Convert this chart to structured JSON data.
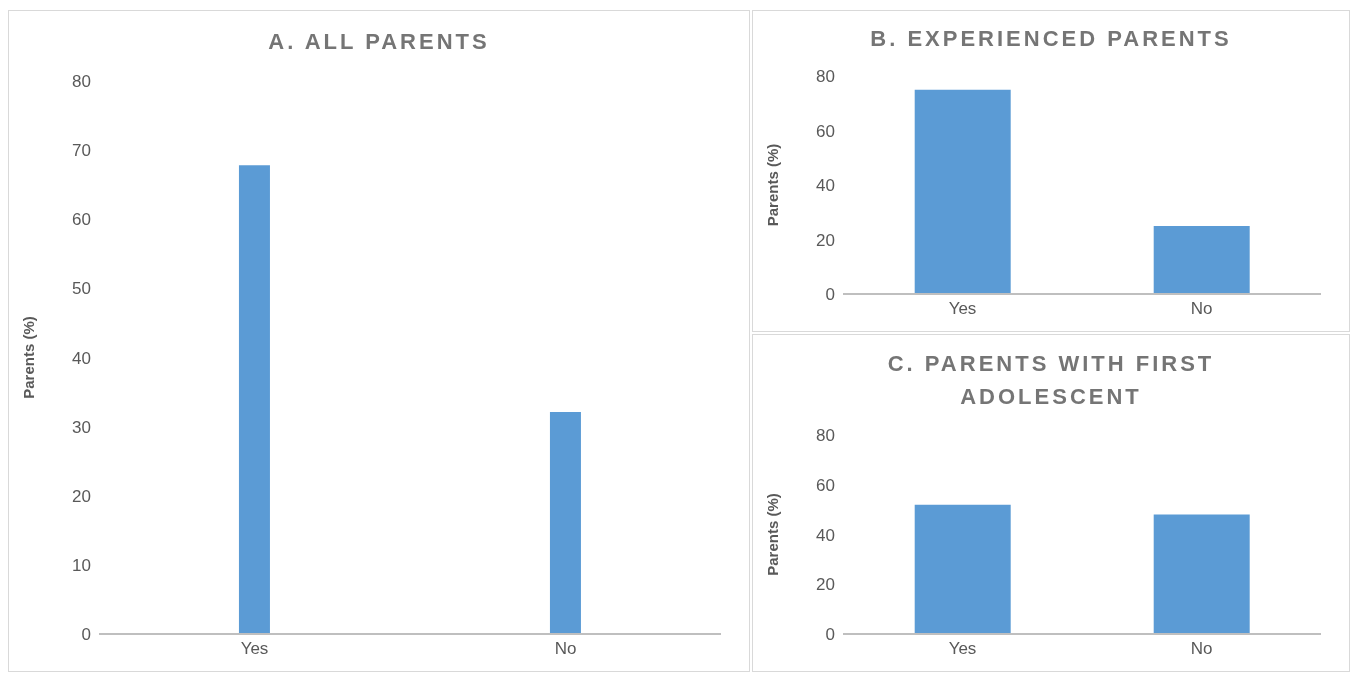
{
  "chart_data": [
    {
      "type": "bar",
      "title": "A. ALL PARENTS",
      "ylabel": "Parents (%)",
      "categories": [
        "Yes",
        "No"
      ],
      "values": [
        67.8,
        32.1
      ],
      "color": "#5b9bd5",
      "ylim": [
        0,
        80
      ],
      "yticks": [
        0,
        10,
        20,
        30,
        40,
        50,
        60,
        70,
        80
      ],
      "grid": false
    },
    {
      "type": "bar",
      "title": "B. EXPERIENCED PARENTS",
      "ylabel": "Parents (%)",
      "categories": [
        "Yes",
        "No"
      ],
      "values": [
        75,
        25
      ],
      "color": "#5b9bd5",
      "ylim": [
        0,
        80
      ],
      "yticks": [
        0,
        20,
        40,
        60,
        80
      ],
      "grid": false
    },
    {
      "type": "bar",
      "title": "C. PARENTS WITH FIRST ADOLESCENT",
      "ylabel": "Parents (%)",
      "categories": [
        "Yes",
        "No"
      ],
      "values": [
        52,
        48
      ],
      "color": "#5b9bd5",
      "ylim": [
        0,
        80
      ],
      "yticks": [
        0,
        20,
        40,
        60,
        80
      ],
      "grid": false
    }
  ]
}
